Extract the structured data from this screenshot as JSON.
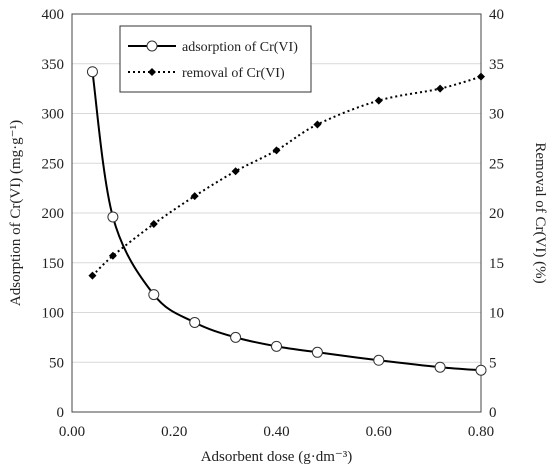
{
  "chart_data": {
    "type": "line",
    "xlabel": "Adsorbent dose (g·dm⁻³)",
    "ylabel_left": "Adsorption of Cr(VI) (mg·g⁻¹)",
    "ylabel_right": "Removal of Cr(VI) (%)",
    "xlim": [
      0,
      0.8
    ],
    "ylim_left": [
      0,
      400
    ],
    "ylim_right": [
      0,
      40
    ],
    "x_ticks": [
      "0.00",
      "0.20",
      "0.40",
      "0.60",
      "0.80"
    ],
    "y_ticks_left": [
      "0",
      "50",
      "100",
      "150",
      "200",
      "250",
      "300",
      "350",
      "400"
    ],
    "y_ticks_right": [
      "0",
      "5",
      "10",
      "15",
      "20",
      "25",
      "30",
      "35",
      "40"
    ],
    "grid": true,
    "legend_position": "top-center",
    "series": [
      {
        "name": "adsorption of Cr(VI)",
        "axis": "left",
        "line": "solid",
        "marker": "open-circle",
        "x": [
          0.04,
          0.08,
          0.16,
          0.24,
          0.32,
          0.4,
          0.48,
          0.6,
          0.72,
          0.8
        ],
        "y": [
          342,
          196,
          118,
          90,
          75,
          66,
          60,
          52,
          45,
          42
        ]
      },
      {
        "name": "removal of Cr(VI)",
        "axis": "right",
        "line": "dotted",
        "marker": "filled-diamond",
        "x": [
          0.04,
          0.08,
          0.16,
          0.24,
          0.32,
          0.4,
          0.48,
          0.6,
          0.72,
          0.8
        ],
        "y": [
          13.7,
          15.7,
          18.9,
          21.7,
          24.2,
          26.3,
          28.9,
          31.3,
          32.5,
          33.7
        ]
      }
    ]
  }
}
